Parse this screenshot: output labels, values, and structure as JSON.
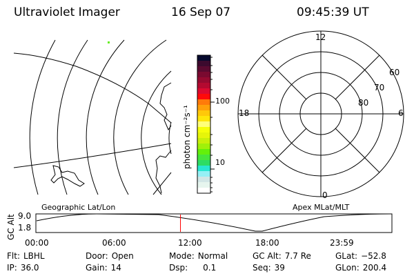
{
  "header": {
    "instrument": "Ultraviolet Imager",
    "date": "16 Sep 07",
    "time": "09:45:39 UT"
  },
  "colorbar": {
    "label": "photon cm⁻²s⁻¹",
    "ticks": [
      "100",
      "10"
    ],
    "colors": [
      "#060a2e",
      "#3c0a2e",
      "#5a0a30",
      "#7a0a30",
      "#960a30",
      "#b40a30",
      "#dc0a30",
      "#ff0a0a",
      "#ff7a0a",
      "#ffa00a",
      "#ffc80a",
      "#ffe60a",
      "#ffff7a",
      "#f5ff0a",
      "#e6f50a",
      "#c8f00a",
      "#a0f00a",
      "#64f00a",
      "#46e63c",
      "#2ddc64",
      "#28e6d2",
      "#96f0f5",
      "#d2e6e6",
      "#e6f5ee",
      "#ffffff"
    ]
  },
  "polar": {
    "mlt_labels": [
      "12",
      "18",
      "6",
      "0"
    ],
    "lat_labels": [
      "60",
      "70",
      "80"
    ]
  },
  "map_labels": {
    "left": "Geographic Lat/Lon",
    "right": "Apex MLat/MLT"
  },
  "orbit_plot": {
    "ylabel": "GC Alt",
    "y_ticks": [
      "9.0",
      "1.8"
    ],
    "x_ticks": [
      "00:00",
      "06:00",
      "12:00",
      "18:00",
      "23:59"
    ],
    "current_time_fraction": 0.406,
    "line_color": "#ff0000"
  },
  "status": [
    {
      "label": "Flt:",
      "value": "LBHL"
    },
    {
      "label": "Door:",
      "value": "Open"
    },
    {
      "label": "Mode:",
      "value": "Normal"
    },
    {
      "label": "GC Alt:",
      "value": "7.7 Re"
    },
    {
      "label": "GLat:",
      "value": "−52.8"
    },
    {
      "label": "IP:",
      "value": "36.0"
    },
    {
      "label": "Gain:",
      "value": "14"
    },
    {
      "label": "Dsp:",
      "value": "0.1"
    },
    {
      "label": "Seq:",
      "value": "39"
    },
    {
      "label": "GLon:",
      "value": "200.4"
    }
  ]
}
